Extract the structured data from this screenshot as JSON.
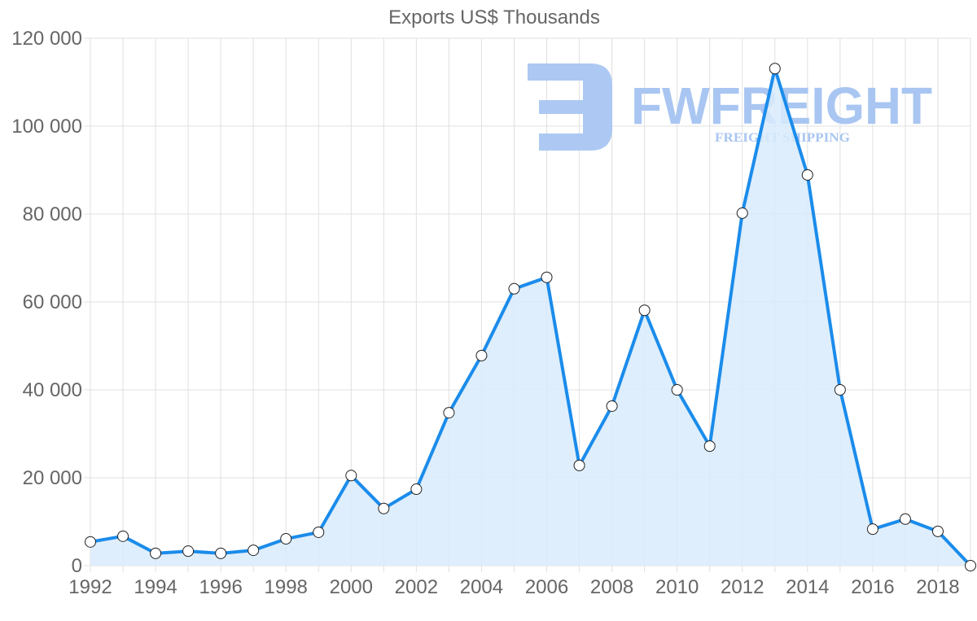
{
  "chart_data": {
    "type": "line",
    "title": "Exports US$ Thousands",
    "xlabel": "",
    "ylabel": "",
    "x": [
      1992,
      1993,
      1994,
      1995,
      1996,
      1997,
      1998,
      1999,
      2000,
      2001,
      2002,
      2003,
      2004,
      2005,
      2006,
      2007,
      2008,
      2009,
      2010,
      2011,
      2012,
      2013,
      2014,
      2015,
      2016,
      2017,
      2018,
      2019
    ],
    "series": [
      {
        "name": "Exports US$ Thousands",
        "values": [
          5400,
          6700,
          2800,
          3300,
          2800,
          3500,
          6100,
          7600,
          20500,
          13000,
          17400,
          34800,
          47800,
          63000,
          65600,
          22800,
          36300,
          58100,
          40000,
          27200,
          80200,
          113100,
          88900,
          40000,
          8300,
          10600,
          7800,
          0
        ]
      }
    ],
    "xtick_labels": [
      "1992",
      "1994",
      "1996",
      "1998",
      "2000",
      "2002",
      "2004",
      "2006",
      "2008",
      "2010",
      "2012",
      "2014",
      "2016",
      "2018"
    ],
    "ytick_labels": [
      "0",
      "20 000",
      "40 000",
      "60 000",
      "80 000",
      "100 000",
      "120 000"
    ],
    "ylim": [
      0,
      120000
    ],
    "grid": true,
    "fill": true,
    "colors": {
      "line": "#1b8ceb",
      "fill": "#d8ebfb",
      "point_fill": "#ffffff",
      "point_stroke": "#222222",
      "grid": "#e0e0e0",
      "text": "#666666"
    }
  },
  "watermark": {
    "brand": "FWFREIGHT",
    "tagline": "FREIGHT SHIPPING"
  }
}
